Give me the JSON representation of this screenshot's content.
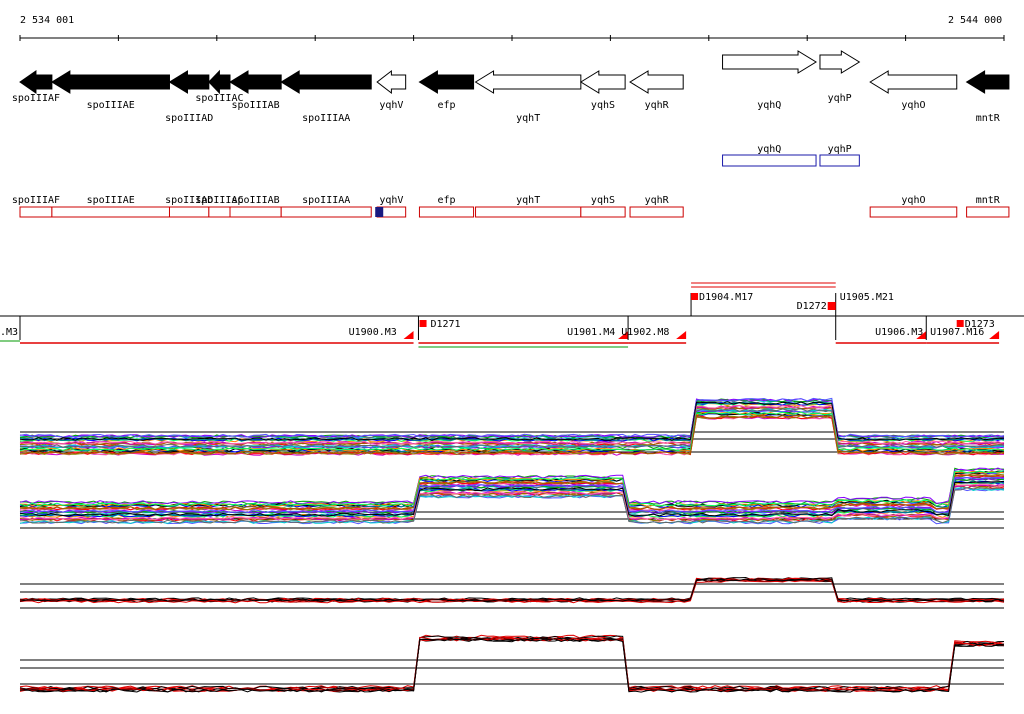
{
  "coordinates": {
    "start_label": "2 534 001",
    "end_label": "2 544 000",
    "start": 2534001,
    "end": 2544000
  },
  "colors": {
    "gene_fill": "#000000",
    "gene_outline": "#000000",
    "annotation_outline": "#cc0000",
    "annotation_alt_outline": "#1a1aaa",
    "highlight_fill": "#1a1a80",
    "segment_marker": "#ff0000",
    "track_line": "#000000",
    "red_trace": "#e00000",
    "green_trace": "#009900"
  },
  "genes": [
    {
      "name": "spoIIIAF",
      "start": 2534001,
      "end": 2534325,
      "strand": "-",
      "filled": true,
      "label_row": 1
    },
    {
      "name": "spoIIIAE",
      "start": 2534325,
      "end": 2535520,
      "strand": "-",
      "filled": true,
      "label_row": 2
    },
    {
      "name": "spoIIIAD",
      "start": 2535520,
      "end": 2535920,
      "strand": "-",
      "filled": true,
      "label_row": 3
    },
    {
      "name": "spoIIIAC",
      "start": 2535920,
      "end": 2536135,
      "strand": "-",
      "filled": true,
      "label_row": 1
    },
    {
      "name": "spoIIIAB",
      "start": 2536135,
      "end": 2536655,
      "strand": "-",
      "filled": true,
      "label_row": 2
    },
    {
      "name": "spoIIIAA",
      "start": 2536655,
      "end": 2537570,
      "strand": "-",
      "filled": true,
      "label_row": 3
    },
    {
      "name": "yqhV",
      "start": 2537630,
      "end": 2537920,
      "strand": "-",
      "filled": false,
      "label_row": 2
    },
    {
      "name": "efp",
      "start": 2538060,
      "end": 2538610,
      "strand": "-",
      "filled": true,
      "label_row": 2
    },
    {
      "name": "yqhT",
      "start": 2538630,
      "end": 2539700,
      "strand": "-",
      "filled": false,
      "label_row": 3
    },
    {
      "name": "yqhS",
      "start": 2539700,
      "end": 2540150,
      "strand": "-",
      "filled": false,
      "label_row": 2
    },
    {
      "name": "yqhR",
      "start": 2540200,
      "end": 2540740,
      "strand": "-",
      "filled": false,
      "label_row": 2
    },
    {
      "name": "yqhQ",
      "start": 2541140,
      "end": 2542090,
      "strand": "+",
      "filled": false,
      "label_row": 2
    },
    {
      "name": "yqhP",
      "start": 2542130,
      "end": 2542530,
      "strand": "+",
      "filled": false,
      "label_row": 1
    },
    {
      "name": "yqhO",
      "start": 2542640,
      "end": 2543520,
      "strand": "-",
      "filled": false,
      "label_row": 2
    },
    {
      "name": "mntR",
      "start": 2543620,
      "end": 2544050,
      "strand": "-",
      "filled": true,
      "label_row": 3
    }
  ],
  "alt_annotations": [
    {
      "name": "yqhQ",
      "start": 2541140,
      "end": 2542090
    },
    {
      "name": "yqhP",
      "start": 2542130,
      "end": 2542530
    }
  ],
  "annotation_boxes": [
    {
      "name": "spoIIIAF",
      "start": 2534001,
      "end": 2534325
    },
    {
      "name": "spoIIIAE",
      "start": 2534325,
      "end": 2535520
    },
    {
      "name": "spoIIIAD",
      "start": 2535520,
      "end": 2535920
    },
    {
      "name": "spoIIIAC",
      "start": 2535920,
      "end": 2536135
    },
    {
      "name": "spoIIIAB",
      "start": 2536135,
      "end": 2536655
    },
    {
      "name": "spoIIIAA",
      "start": 2536655,
      "end": 2537570
    },
    {
      "name": "yqhV",
      "start": 2537630,
      "end": 2537920
    },
    {
      "name": "efp",
      "start": 2538060,
      "end": 2538610
    },
    {
      "name": "yqhT",
      "start": 2538630,
      "end": 2539700
    },
    {
      "name": "yqhS",
      "start": 2539700,
      "end": 2540150
    },
    {
      "name": "yqhR",
      "start": 2540200,
      "end": 2540740
    },
    {
      "name": "yqhO",
      "start": 2542640,
      "end": 2543520
    },
    {
      "name": "mntR",
      "start": 2543620,
      "end": 2544050
    }
  ],
  "annotation_highlight": {
    "start": 2537570,
    "end": 2537660
  },
  "segments": [
    {
      "name": "U1900.M3",
      "start": 2534001,
      "end": 2538000
    },
    {
      "name": "U1901.M4",
      "start": 2538050,
      "end": 2540180
    },
    {
      "name": "U1902.M8",
      "start": 2540180,
      "end": 2540770
    },
    {
      "name": "U1906.M3",
      "start": 2542290,
      "end": 2543210
    },
    {
      "name": "U1907.M16",
      "start": 2543210,
      "end": 2543950
    }
  ],
  "segment_labels": [
    {
      "text": ".M3",
      "pos": 2534001
    },
    {
      "text": "U1900.M3",
      "pos": 2537830
    },
    {
      "text": "D1271",
      "pos": 2538100
    },
    {
      "text": "U1901.M4",
      "pos": 2540050
    },
    {
      "text": "U1902.M8",
      "pos": 2540600
    },
    {
      "text": "D1904.M17",
      "pos": 2540830
    },
    {
      "text": "D1272",
      "pos": 2542200
    },
    {
      "text": "U1905.M21",
      "pos": 2542330
    },
    {
      "text": "U1906.M3",
      "pos": 2543180
    },
    {
      "text": "U1907.M16",
      "pos": 2543800
    },
    {
      "text": "D1273",
      "pos": 2543560
    }
  ],
  "expression_tracks": [
    {
      "name": "track-1",
      "base": 0.35,
      "plateaus": [
        [
          2540820,
          2542290,
          0.85
        ]
      ]
    },
    {
      "name": "track-2",
      "base": 0.45,
      "plateaus": [
        [
          2538050,
          2540180,
          0.8
        ],
        [
          2542290,
          2543260,
          0.5
        ],
        [
          2543460,
          2544000,
          0.9
        ]
      ]
    },
    {
      "name": "track-3",
      "base": 0.45,
      "plateaus": [
        [
          2540820,
          2542290,
          0.82
        ]
      ]
    },
    {
      "name": "track-4",
      "base": 0.15,
      "plateaus": [
        [
          2538050,
          2540180,
          0.85
        ],
        [
          2543460,
          2544000,
          0.78
        ]
      ]
    }
  ]
}
